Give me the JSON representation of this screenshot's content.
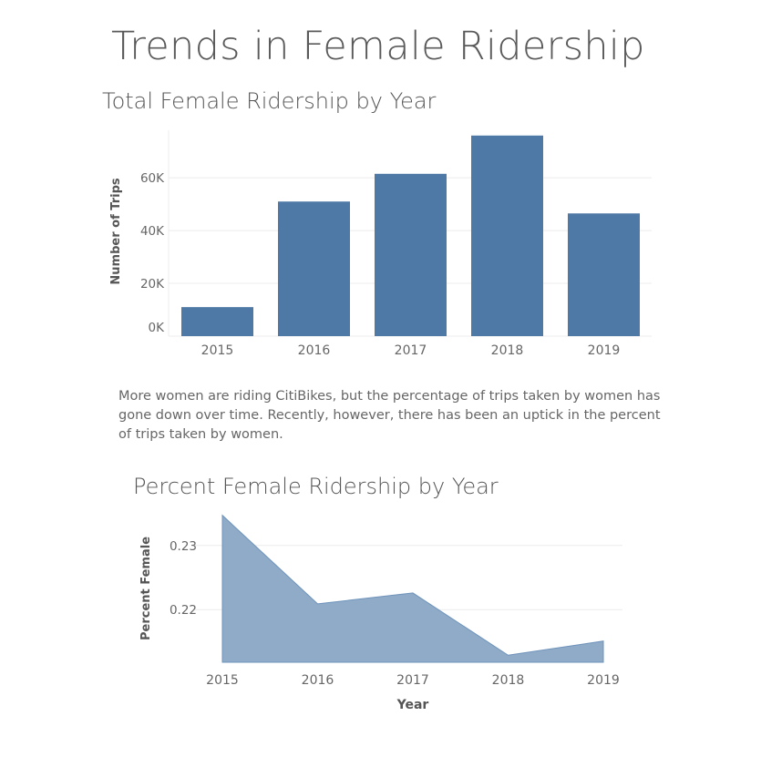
{
  "page": {
    "title": "Trends in Female Ridership",
    "description": "More women are riding CitiBikes, but the percentage of trips taken by women has gone down over time.  Recently, however, there has been an uptick in the percent of trips taken by women."
  },
  "colors": {
    "bar": "#4e79a7",
    "area": "#8fabc8",
    "area_line": "#6f93bb",
    "grid": "#ececec",
    "axis_text": "#666666"
  },
  "chart_data": [
    {
      "type": "bar",
      "title": "Total Female Ridership by Year",
      "categories": [
        "2015",
        "2016",
        "2017",
        "2018",
        "2019"
      ],
      "values": [
        11000,
        51000,
        61500,
        76000,
        46500
      ],
      "ylabel": "Number of Trips",
      "xlabel": "",
      "ylim": [
        0,
        78000
      ],
      "yticks": [
        0,
        20000,
        40000,
        60000
      ],
      "ytick_labels": [
        "0K",
        "20K",
        "40K",
        "60K"
      ],
      "grid": true
    },
    {
      "type": "area",
      "title": "Percent Female Ridership by Year",
      "x": [
        "2015",
        "2016",
        "2017",
        "2018",
        "2019"
      ],
      "values": [
        0.2347,
        0.2209,
        0.2226,
        0.2129,
        0.2151
      ],
      "ylabel": "Percent Female",
      "xlabel": "Year",
      "ylim": [
        0.2118,
        0.2348
      ],
      "yticks": [
        0.22,
        0.23
      ],
      "ytick_labels": [
        "0.22",
        "0.23"
      ],
      "grid": true
    }
  ]
}
